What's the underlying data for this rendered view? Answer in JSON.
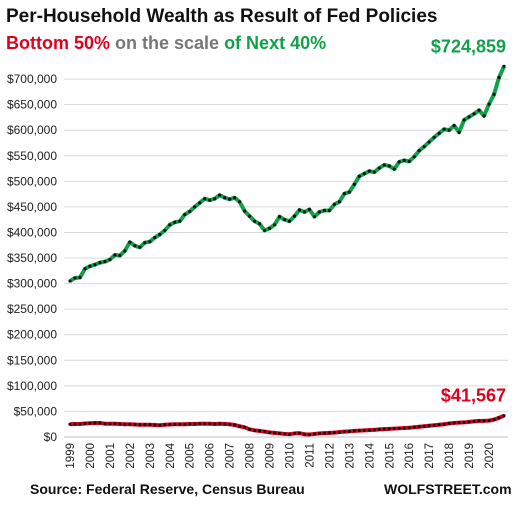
{
  "title": "Per-Household  Wealth as Result of Fed Policies",
  "subtitle": {
    "part1": "Bottom 50%",
    "part2": " on the scale ",
    "part3": "of Next 40%"
  },
  "source": "Source: Federal Reserve, Census Bureau",
  "brand": "WOLFSTREET.com",
  "colors": {
    "bottom": "#e0001b",
    "next": "#13a04a",
    "grid": "#d9d9d9",
    "marker": "#111111"
  },
  "chart_data": {
    "type": "line",
    "title": "Per-Household  Wealth as Result of Fed Policies",
    "ylim": [
      0,
      750000
    ],
    "xlim": [
      1999.0,
      2020.75
    ],
    "yticks": [
      0,
      50000,
      100000,
      150000,
      200000,
      250000,
      300000,
      350000,
      400000,
      450000,
      500000,
      550000,
      600000,
      650000,
      700000
    ],
    "ytick_labels": [
      "$0",
      "$50,000",
      "$100,000",
      "$150,000",
      "$200,000",
      "$250,000",
      "$300,000",
      "$350,000",
      "$400,000",
      "$450,000",
      "$500,000",
      "$550,000",
      "$600,000",
      "$650,000",
      "$700,000"
    ],
    "xtick_labels": [
      "1999",
      "2000",
      "2001",
      "2002",
      "2003",
      "2004",
      "2005",
      "2006",
      "2007",
      "2008",
      "2009",
      "2010",
      "2011",
      "2012",
      "2013",
      "2014",
      "2015",
      "2016",
      "2017",
      "2018",
      "2019",
      "2020"
    ],
    "grid": true,
    "legend": "none",
    "annotations": [
      {
        "text": "$724,859",
        "series": "Next 40%"
      },
      {
        "text": "$41,567",
        "series": "Bottom 50%"
      }
    ],
    "series": [
      {
        "name": "Next 40%",
        "color": "#13a04a",
        "points": [
          [
            1999.0,
            305000
          ],
          [
            1999.25,
            311000
          ],
          [
            1999.5,
            312000
          ],
          [
            1999.75,
            329000
          ],
          [
            2000.0,
            334000
          ],
          [
            2000.25,
            337000
          ],
          [
            2000.5,
            341000
          ],
          [
            2000.75,
            343000
          ],
          [
            2001.0,
            347000
          ],
          [
            2001.25,
            356000
          ],
          [
            2001.5,
            355000
          ],
          [
            2001.75,
            364000
          ],
          [
            2002.0,
            381000
          ],
          [
            2002.25,
            374000
          ],
          [
            2002.5,
            371000
          ],
          [
            2002.75,
            380000
          ],
          [
            2003.0,
            382000
          ],
          [
            2003.25,
            390000
          ],
          [
            2003.5,
            396000
          ],
          [
            2003.75,
            404000
          ],
          [
            2004.0,
            415000
          ],
          [
            2004.25,
            420000
          ],
          [
            2004.5,
            422000
          ],
          [
            2004.75,
            435000
          ],
          [
            2005.0,
            441000
          ],
          [
            2005.25,
            450000
          ],
          [
            2005.5,
            458000
          ],
          [
            2005.75,
            466000
          ],
          [
            2006.0,
            463000
          ],
          [
            2006.25,
            466000
          ],
          [
            2006.5,
            473000
          ],
          [
            2006.75,
            468000
          ],
          [
            2007.0,
            465000
          ],
          [
            2007.25,
            468000
          ],
          [
            2007.5,
            460000
          ],
          [
            2007.75,
            442000
          ],
          [
            2008.0,
            432000
          ],
          [
            2008.25,
            422000
          ],
          [
            2008.5,
            417000
          ],
          [
            2008.75,
            404000
          ],
          [
            2009.0,
            408000
          ],
          [
            2009.25,
            415000
          ],
          [
            2009.5,
            431000
          ],
          [
            2009.75,
            425000
          ],
          [
            2010.0,
            422000
          ],
          [
            2010.25,
            432000
          ],
          [
            2010.5,
            444000
          ],
          [
            2010.75,
            440000
          ],
          [
            2011.0,
            445000
          ],
          [
            2011.25,
            431000
          ],
          [
            2011.5,
            440000
          ],
          [
            2011.75,
            443000
          ],
          [
            2012.0,
            443000
          ],
          [
            2012.25,
            455000
          ],
          [
            2012.5,
            460000
          ],
          [
            2012.75,
            476000
          ],
          [
            2013.0,
            479000
          ],
          [
            2013.25,
            494000
          ],
          [
            2013.5,
            510000
          ],
          [
            2013.75,
            515000
          ],
          [
            2014.0,
            520000
          ],
          [
            2014.25,
            518000
          ],
          [
            2014.5,
            526000
          ],
          [
            2014.75,
            532000
          ],
          [
            2015.0,
            530000
          ],
          [
            2015.25,
            524000
          ],
          [
            2015.5,
            538000
          ],
          [
            2015.75,
            541000
          ],
          [
            2016.0,
            539000
          ],
          [
            2016.25,
            548000
          ],
          [
            2016.5,
            560000
          ],
          [
            2016.75,
            568000
          ],
          [
            2017.0,
            577000
          ],
          [
            2017.25,
            586000
          ],
          [
            2017.5,
            594000
          ],
          [
            2017.75,
            602000
          ],
          [
            2018.0,
            600000
          ],
          [
            2018.25,
            609000
          ],
          [
            2018.5,
            596000
          ],
          [
            2018.75,
            620000
          ],
          [
            2019.0,
            626000
          ],
          [
            2019.25,
            632000
          ],
          [
            2019.5,
            639000
          ],
          [
            2019.75,
            628000
          ],
          [
            2020.0,
            651000
          ],
          [
            2020.25,
            670000
          ],
          [
            2020.5,
            703000
          ],
          [
            2020.75,
            724859
          ]
        ]
      },
      {
        "name": "Bottom 50%",
        "color": "#e0001b",
        "points": [
          [
            1999.0,
            25000
          ],
          [
            1999.25,
            25500
          ],
          [
            1999.5,
            25500
          ],
          [
            1999.75,
            26500
          ],
          [
            2000.0,
            27000
          ],
          [
            2000.25,
            27500
          ],
          [
            2000.5,
            27500
          ],
          [
            2000.75,
            26000
          ],
          [
            2001.0,
            26000
          ],
          [
            2001.25,
            26000
          ],
          [
            2001.5,
            25500
          ],
          [
            2001.75,
            25000
          ],
          [
            2002.0,
            25000
          ],
          [
            2002.25,
            24500
          ],
          [
            2002.5,
            24000
          ],
          [
            2002.75,
            24000
          ],
          [
            2003.0,
            24000
          ],
          [
            2003.25,
            23500
          ],
          [
            2003.5,
            23000
          ],
          [
            2003.75,
            24000
          ],
          [
            2004.0,
            24500
          ],
          [
            2004.25,
            25000
          ],
          [
            2004.5,
            25000
          ],
          [
            2004.75,
            25000
          ],
          [
            2005.0,
            25500
          ],
          [
            2005.25,
            25500
          ],
          [
            2005.5,
            26000
          ],
          [
            2005.75,
            26000
          ],
          [
            2006.0,
            26000
          ],
          [
            2006.25,
            25500
          ],
          [
            2006.5,
            26000
          ],
          [
            2006.75,
            25500
          ],
          [
            2007.0,
            25000
          ],
          [
            2007.25,
            23500
          ],
          [
            2007.5,
            21000
          ],
          [
            2007.75,
            19000
          ],
          [
            2008.0,
            15000
          ],
          [
            2008.25,
            13000
          ],
          [
            2008.5,
            12000
          ],
          [
            2008.75,
            10500
          ],
          [
            2009.0,
            9000
          ],
          [
            2009.25,
            8000
          ],
          [
            2009.5,
            7000
          ],
          [
            2009.75,
            6000
          ],
          [
            2010.0,
            5500
          ],
          [
            2010.25,
            7000
          ],
          [
            2010.5,
            7500
          ],
          [
            2010.75,
            5500
          ],
          [
            2011.0,
            5000
          ],
          [
            2011.25,
            6000
          ],
          [
            2011.5,
            7000
          ],
          [
            2011.75,
            7500
          ],
          [
            2012.0,
            8000
          ],
          [
            2012.25,
            8500
          ],
          [
            2012.5,
            9500
          ],
          [
            2012.75,
            10500
          ],
          [
            2013.0,
            11000
          ],
          [
            2013.25,
            12000
          ],
          [
            2013.5,
            12500
          ],
          [
            2013.75,
            13000
          ],
          [
            2014.0,
            13500
          ],
          [
            2014.25,
            14000
          ],
          [
            2014.5,
            15000
          ],
          [
            2014.75,
            15500
          ],
          [
            2015.0,
            16000
          ],
          [
            2015.25,
            16500
          ],
          [
            2015.5,
            17000
          ],
          [
            2015.75,
            17500
          ],
          [
            2016.0,
            18000
          ],
          [
            2016.25,
            19000
          ],
          [
            2016.5,
            20000
          ],
          [
            2016.75,
            21000
          ],
          [
            2017.0,
            22000
          ],
          [
            2017.25,
            23000
          ],
          [
            2017.5,
            24000
          ],
          [
            2017.75,
            25000
          ],
          [
            2018.0,
            26500
          ],
          [
            2018.25,
            27500
          ],
          [
            2018.5,
            28000
          ],
          [
            2018.75,
            28500
          ],
          [
            2019.0,
            29500
          ],
          [
            2019.25,
            30500
          ],
          [
            2019.5,
            31500
          ],
          [
            2019.75,
            31500
          ],
          [
            2020.0,
            32000
          ],
          [
            2020.25,
            34000
          ],
          [
            2020.5,
            37500
          ],
          [
            2020.75,
            41567
          ]
        ]
      }
    ]
  }
}
